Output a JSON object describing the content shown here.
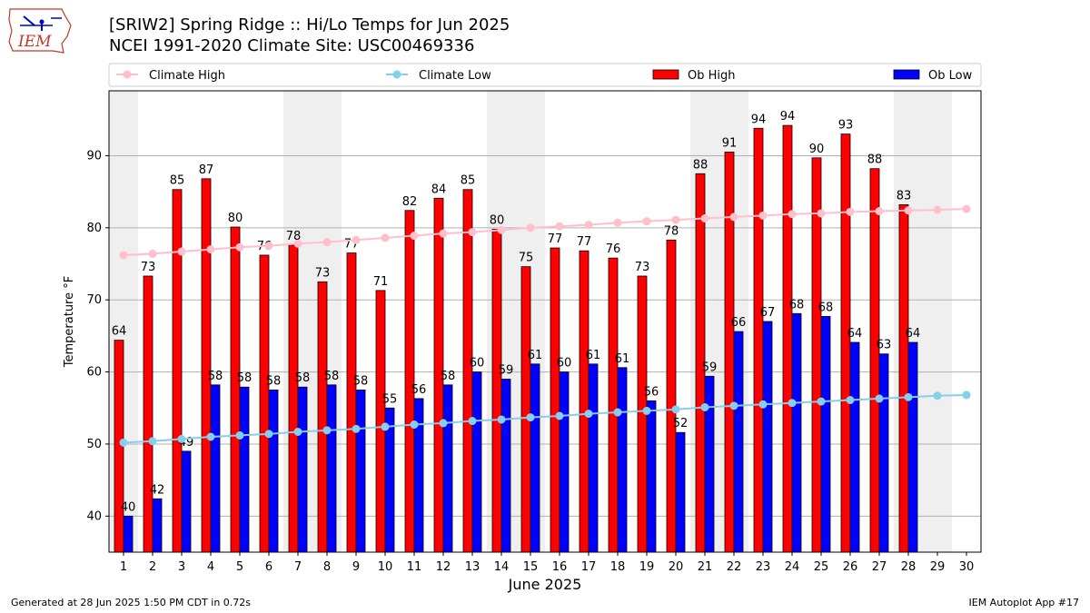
{
  "header": {
    "title_line1": "[SRIW2] Spring Ridge :: Hi/Lo Temps for Jun 2025",
    "title_line2": "NCEI 1991-2020 Climate Site: USC00469336",
    "logo_text": "IEM"
  },
  "footer": {
    "left": "Generated at 28 Jun 2025 1:50 PM CDT in 0.72s",
    "right": "IEM Autoplot App #17"
  },
  "colors": {
    "ob_high": "#ff0000",
    "ob_low": "#0000ff",
    "climate_high": "#ffc0cb",
    "climate_low": "#87ceeb",
    "weekend_shade": "#efefef",
    "grid": "#b0b0b0"
  },
  "chart_data": {
    "type": "bar",
    "xlabel": "June 2025",
    "ylabel": "Temperature °F",
    "ylim": [
      35,
      99
    ],
    "yticks": [
      40,
      50,
      60,
      70,
      80,
      90
    ],
    "grid": "horizontal",
    "legend_position": "top",
    "categories": [
      1,
      2,
      3,
      4,
      5,
      6,
      7,
      8,
      9,
      10,
      11,
      12,
      13,
      14,
      15,
      16,
      17,
      18,
      19,
      20,
      21,
      22,
      23,
      24,
      25,
      26,
      27,
      28,
      29,
      30
    ],
    "shaded_days": [
      1,
      7,
      8,
      14,
      15,
      21,
      22,
      28,
      29
    ],
    "series": [
      {
        "name": "Ob High",
        "type": "bar",
        "values": [
          64.4,
          73.3,
          85.3,
          86.8,
          80.1,
          76.2,
          77.6,
          72.5,
          76.5,
          71.3,
          82.4,
          84.1,
          85.3,
          79.8,
          74.6,
          77.2,
          76.8,
          75.8,
          73.3,
          78.3,
          87.5,
          90.5,
          93.8,
          94.2,
          89.7,
          93.0,
          88.2,
          83.2,
          null,
          null
        ]
      },
      {
        "name": "Ob Low",
        "type": "bar",
        "values": [
          40,
          42.4,
          49,
          58.2,
          57.9,
          57.5,
          57.9,
          58.2,
          57.5,
          55,
          56.3,
          58.2,
          60,
          59,
          61.1,
          60,
          61.1,
          60.6,
          56,
          51.6,
          59.4,
          65.6,
          67,
          68.1,
          67.7,
          64.1,
          62.5,
          64.1,
          null,
          null
        ]
      },
      {
        "name": "Climate High",
        "type": "line",
        "values": [
          76.2,
          76.4,
          76.7,
          77,
          77.3,
          77.5,
          77.8,
          78.0,
          78.3,
          78.6,
          78.9,
          79.2,
          79.4,
          79.7,
          80,
          80.2,
          80.4,
          80.7,
          80.9,
          81.1,
          81.3,
          81.5,
          81.7,
          81.9,
          82,
          82.2,
          82.3,
          82.4,
          82.5,
          82.6
        ]
      },
      {
        "name": "Climate Low",
        "type": "line",
        "values": [
          50.2,
          50.4,
          50.7,
          51,
          51.2,
          51.4,
          51.7,
          51.9,
          52.1,
          52.4,
          52.7,
          52.9,
          53.2,
          53.4,
          53.7,
          53.9,
          54.2,
          54.4,
          54.6,
          54.8,
          55.1,
          55.3,
          55.5,
          55.7,
          55.9,
          56.1,
          56.3,
          56.5,
          56.7,
          56.8
        ]
      }
    ],
    "data_labels_high": [
      "64",
      "73",
      "85",
      "87",
      "80",
      "76",
      "78",
      "73",
      "77",
      "71",
      "82",
      "84",
      "85",
      "80",
      "75",
      "77",
      "77",
      "76",
      "73",
      "78",
      "88",
      "91",
      "94",
      "94",
      "90",
      "93",
      "88",
      "83"
    ],
    "data_labels_low": [
      "40",
      "42",
      "49",
      "58",
      "58",
      "58",
      "58",
      "58",
      "58",
      "55",
      "56",
      "58",
      "60",
      "59",
      "61",
      "60",
      "61",
      "61",
      "56",
      "52",
      "59",
      "66",
      "67",
      "68",
      "68",
      "64",
      "63",
      "64"
    ]
  }
}
